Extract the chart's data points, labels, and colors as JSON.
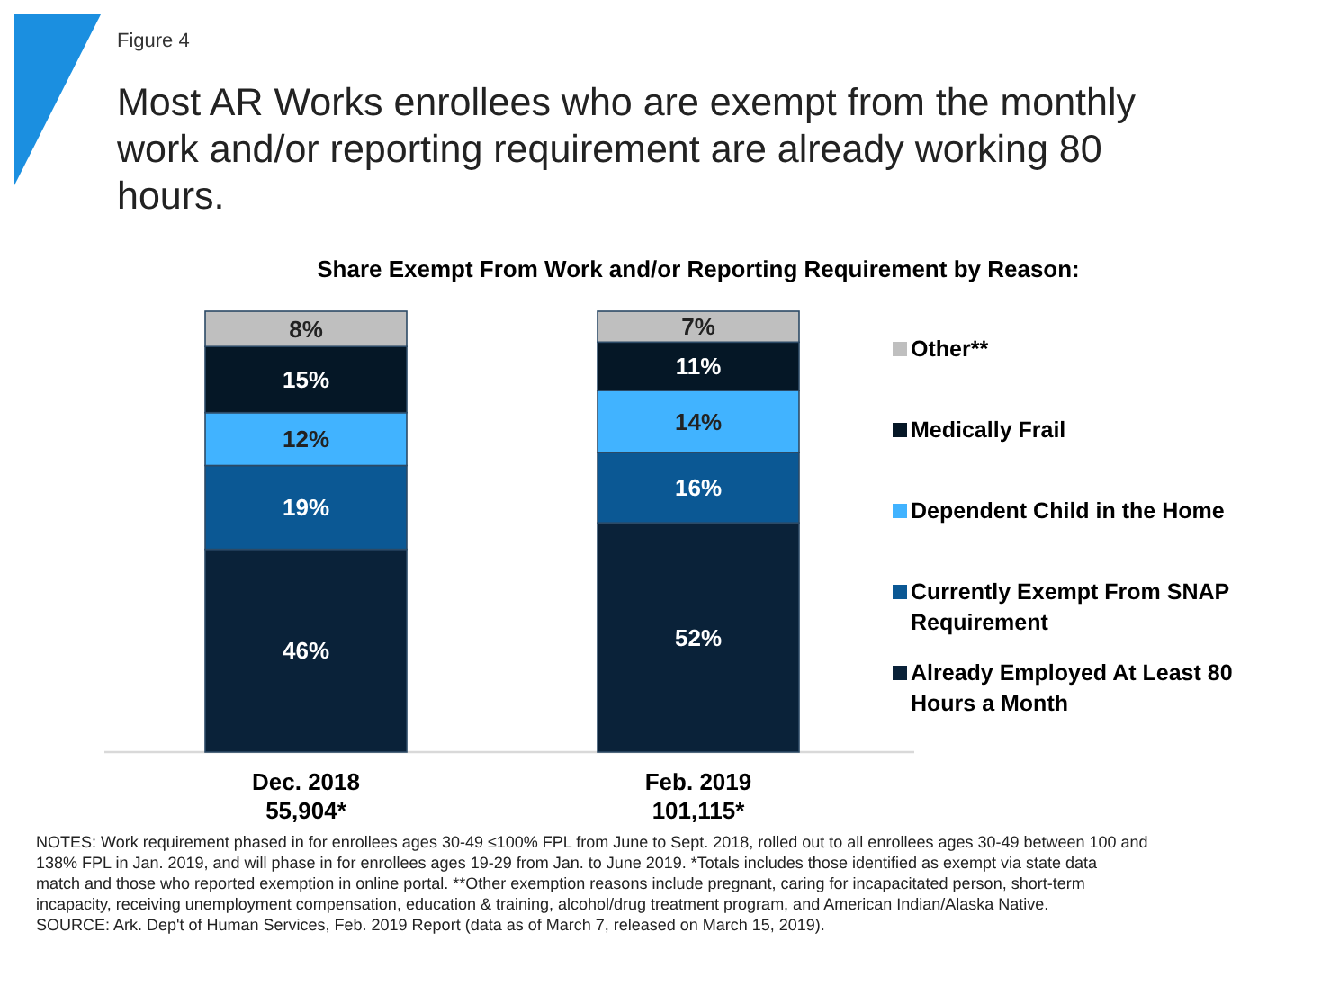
{
  "chart_data": {
    "type": "bar",
    "stacked": true,
    "title": "Most AR Works enrollees who are exempt from the monthly work and/or reporting requirement are already working 80 hours.",
    "subtitle": "Share Exempt From Work and/or Reporting Requirement by Reason:",
    "categories": [
      "Dec. 2018\n55,904*",
      "Feb. 2019\n101,115*"
    ],
    "series": [
      {
        "name": "Already Employed At Least 80 Hours a Month",
        "color": "#0a2239",
        "values": [
          46,
          52
        ],
        "value_labels": [
          "46%",
          "52%"
        ]
      },
      {
        "name": "Currently Exempt From SNAP Requirement",
        "color": "#0b5894",
        "values": [
          19,
          16
        ],
        "value_labels": [
          "19%",
          "16%"
        ]
      },
      {
        "name": "Dependent Child in the Home",
        "color": "#41b3ff",
        "values": [
          12,
          14
        ],
        "value_labels": [
          "12%",
          "14%"
        ]
      },
      {
        "name": "Medically Frail",
        "color": "#051726",
        "values": [
          15,
          11
        ],
        "value_labels": [
          "15%",
          "11%"
        ]
      },
      {
        "name": "Other**",
        "color": "#bfbfbf",
        "values": [
          8,
          7
        ],
        "value_labels": [
          "8%",
          "7%"
        ]
      }
    ],
    "legend": "right",
    "annotations": [
      "Figure 4",
      "NOTES: Work requirement phased in for enrollees ages 30-49 ≤100% FPL from June to Sept. 2018, rolled out to all enrollees ages 30-49 between 100 and 138% FPL in Jan. 2019, and will phase in for enrollees ages 19-29 from Jan. to June 2019.  *Totals includes those identified as exempt via state data match and those who reported exemption in online portal.  **Other exemption reasons include pregnant, caring for incapacitated person, short-term incapacity, receiving unemployment compensation, education & training, alcohol/drug treatment program, and American Indian/Alaska Native.",
      "SOURCE: Ark. Dep't of Human Services, Feb. 2019 Report (data as of March 7, released on March 15, 2019)."
    ]
  }
}
